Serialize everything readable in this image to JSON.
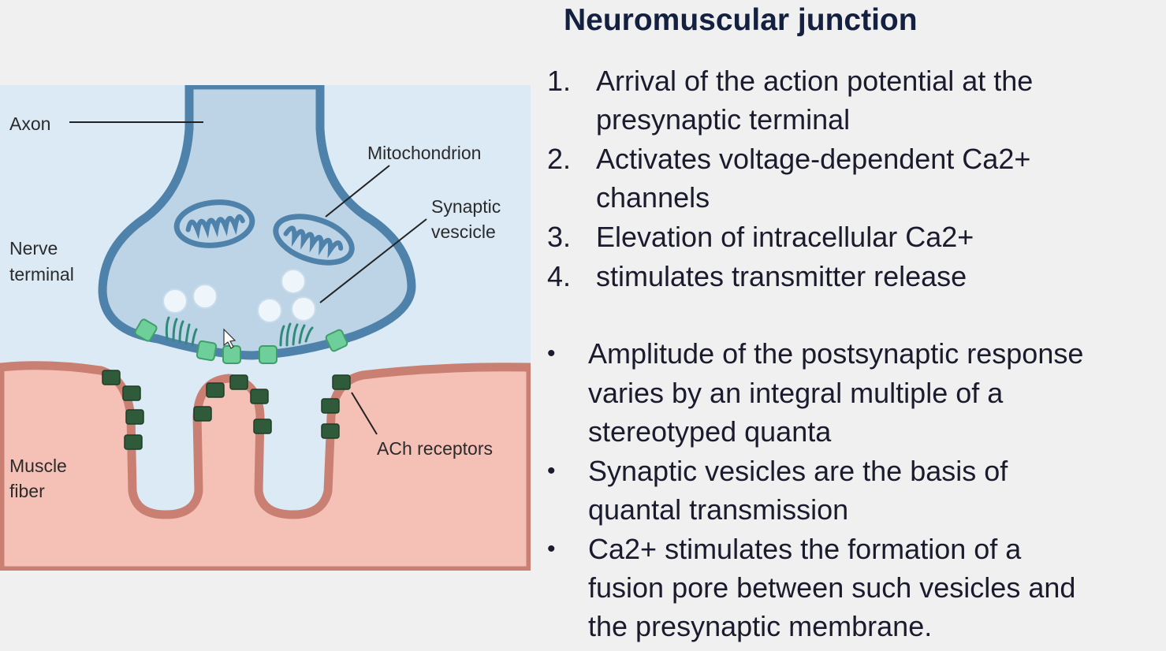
{
  "slide": {
    "title": "Neuromuscular junction",
    "steps": [
      {
        "number": "1.",
        "lines": [
          "Arrival of the action potential at the",
          "presynaptic terminal"
        ]
      },
      {
        "number": "2.",
        "lines": [
          "Activates voltage-dependent Ca2+",
          "channels"
        ]
      },
      {
        "number": "3.",
        "lines": [
          "Elevation of intracellular Ca2+"
        ]
      },
      {
        "number": "4.",
        "lines": [
          "stimulates transmitter release"
        ]
      }
    ],
    "bullets": [
      {
        "marker": "•",
        "lines": [
          "Amplitude of the postsynaptic response",
          "varies by an integral multiple of a",
          "stereotyped quanta"
        ]
      },
      {
        "marker": "•",
        "lines": [
          "Synaptic vesicles are the basis of",
          "quantal transmission"
        ]
      },
      {
        "marker": "•",
        "lines": [
          "Ca2+ stimulates the formation of a",
          "fusion pore between such vesicles and",
          "the presynaptic membrane."
        ]
      }
    ]
  },
  "diagram": {
    "labels": {
      "axon": "Axon",
      "nerve_terminal": [
        "Nerve",
        "terminal"
      ],
      "mitochondrion": "Mitochondrion",
      "synaptic_vesicle": [
        "Synaptic",
        "vescicle"
      ],
      "ach_receptors": "ACh receptors",
      "muscle_fiber": [
        "Muscle",
        "fiber"
      ]
    },
    "colors": {
      "cleft_background": "#dbeaf5",
      "terminal_fill": "#bcd4e6",
      "terminal_membrane": "#4f82aa",
      "muscle_fill": "#f5c0b6",
      "muscle_membrane": "#c97f72",
      "ach_receptor": "#2f5b3a",
      "ca_channel": "#6fcf9a",
      "vesicle": "#eef5fb"
    }
  }
}
